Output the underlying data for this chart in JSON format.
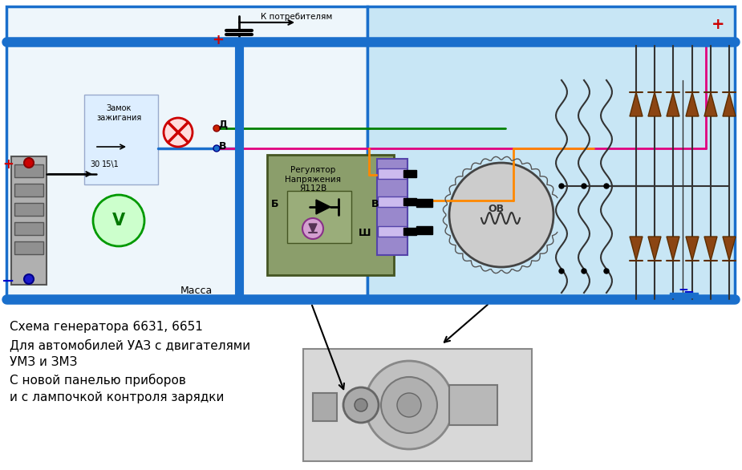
{
  "bg_color": "#ffffff",
  "diagram_bg": "#c8e6f5",
  "diagram_left_bg": "#eef6fb",
  "title_lines": [
    "Схема генератора 6631, 6651",
    "Для автомобилей УАЗ с двигателями",
    "УМЗ и ЗМЗ",
    "С новой панелью приборов",
    "и с лампочкой контроля зарядки"
  ],
  "consumers_label": "К потребителям",
  "ignition_label": "Замок\nзажигания",
  "voltage_reg_label": "Регулятор\nНапряжения\nЯ112В",
  "massa_label": "Масса",
  "wire_blue": "#1a6fcc",
  "wire_green": "#008000",
  "wire_pink": "#e0007f",
  "wire_orange": "#ff8800",
  "wire_black": "#111111",
  "wire_gray": "#888888"
}
